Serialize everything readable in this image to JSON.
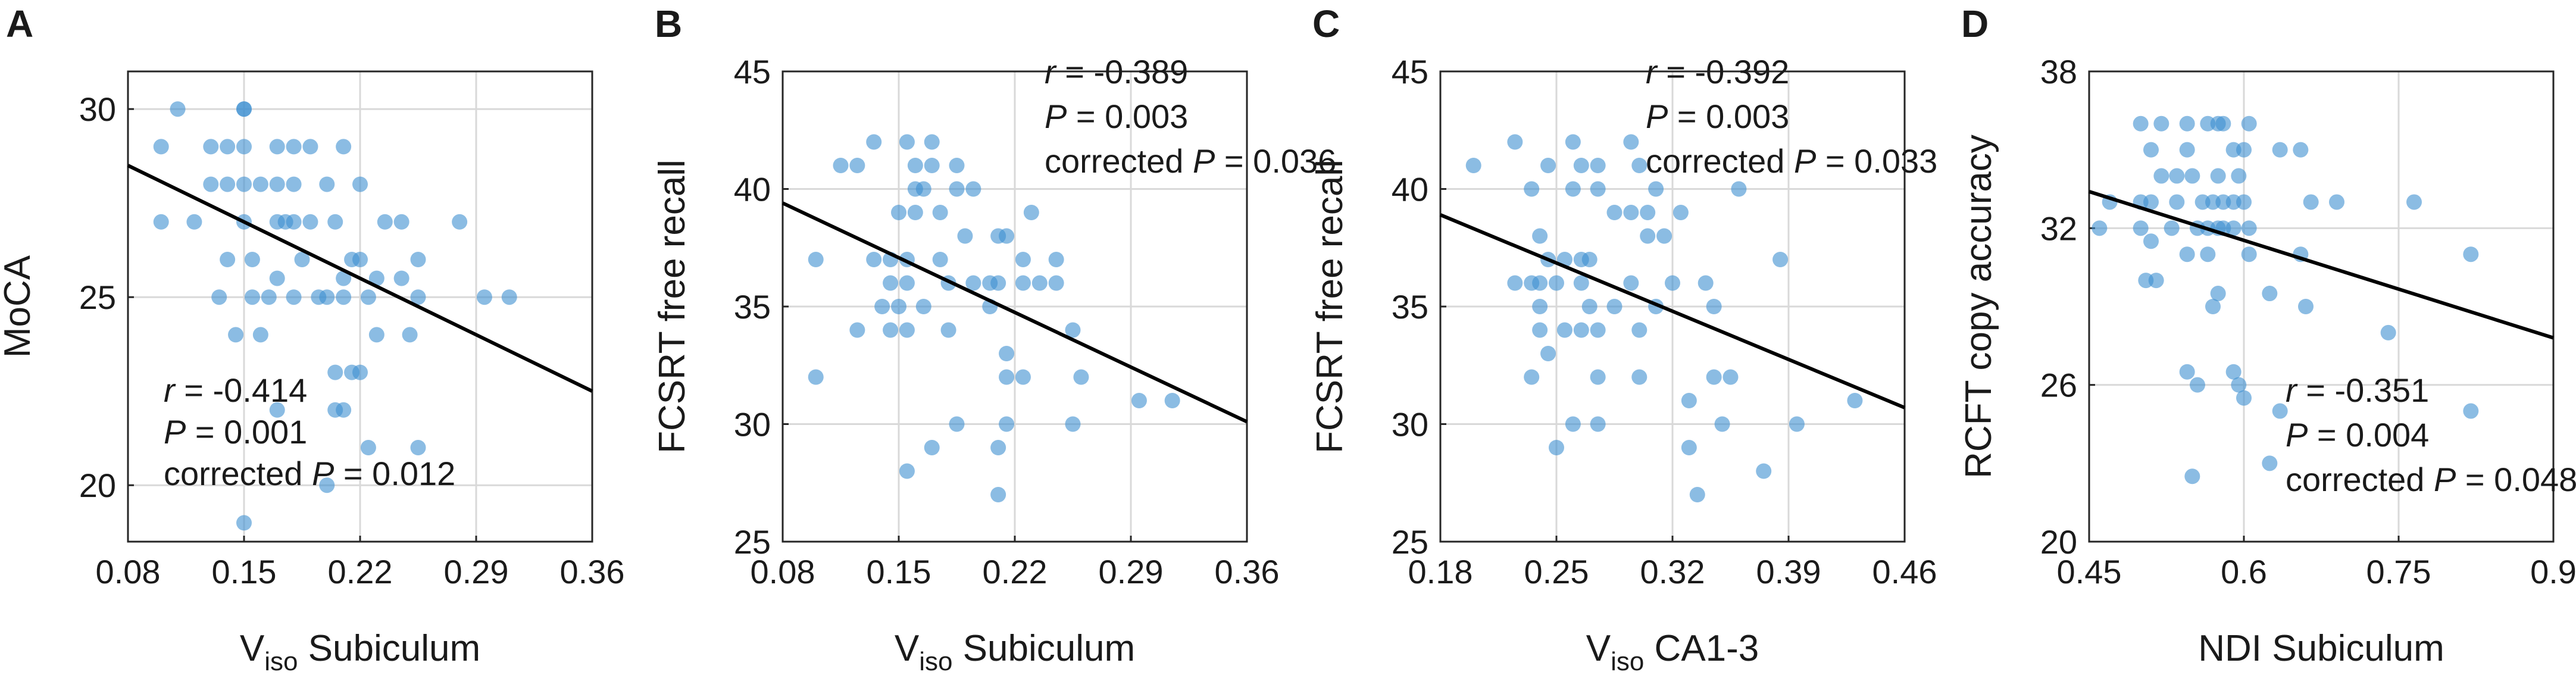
{
  "chart_data": [
    {
      "panel": "A",
      "type": "scatter",
      "xlabel": "V",
      "xlabel_sub": "iso",
      "xlabel_rest": " Subiculum",
      "ylabel": "MoCA",
      "xlim": [
        0.08,
        0.36
      ],
      "ylim": [
        18.5,
        31
      ],
      "xticks": [
        0.08,
        0.15,
        0.22,
        0.29,
        0.36
      ],
      "xtick_labels": [
        "0.08",
        "0.15",
        "0.22",
        "0.29",
        "0.36"
      ],
      "yticks": [
        20,
        25,
        30
      ],
      "ytick_labels": [
        "20",
        "25",
        "30"
      ],
      "fit": {
        "x": [
          0.08,
          0.36
        ],
        "y": [
          28.5,
          22.5
        ]
      },
      "stats": {
        "r_label": "r",
        "r_value": " = -0.414",
        "p_label": "P",
        "p_value": " = 0.001",
        "corr_label": "corrected ",
        "corr_p_label": "P",
        "corr_p_value": " = 0.012"
      },
      "points": [
        [
          0.11,
          30
        ],
        [
          0.15,
          30
        ],
        [
          0.15,
          30
        ],
        [
          0.1,
          29
        ],
        [
          0.13,
          29
        ],
        [
          0.14,
          29
        ],
        [
          0.15,
          29
        ],
        [
          0.17,
          29
        ],
        [
          0.18,
          29
        ],
        [
          0.19,
          29
        ],
        [
          0.21,
          29
        ],
        [
          0.13,
          28
        ],
        [
          0.14,
          28
        ],
        [
          0.15,
          28
        ],
        [
          0.16,
          28
        ],
        [
          0.17,
          28
        ],
        [
          0.18,
          28
        ],
        [
          0.2,
          28
        ],
        [
          0.22,
          28
        ],
        [
          0.1,
          27
        ],
        [
          0.12,
          27
        ],
        [
          0.15,
          27
        ],
        [
          0.17,
          27
        ],
        [
          0.175,
          27
        ],
        [
          0.18,
          27
        ],
        [
          0.19,
          27
        ],
        [
          0.205,
          27
        ],
        [
          0.235,
          27
        ],
        [
          0.245,
          27
        ],
        [
          0.28,
          27
        ],
        [
          0.14,
          26
        ],
        [
          0.155,
          26
        ],
        [
          0.185,
          26
        ],
        [
          0.215,
          26
        ],
        [
          0.22,
          26
        ],
        [
          0.255,
          26
        ],
        [
          0.17,
          25.5
        ],
        [
          0.21,
          25.5
        ],
        [
          0.23,
          25.5
        ],
        [
          0.245,
          25.5
        ],
        [
          0.135,
          25
        ],
        [
          0.155,
          25
        ],
        [
          0.165,
          25
        ],
        [
          0.18,
          25
        ],
        [
          0.195,
          25
        ],
        [
          0.2,
          25
        ],
        [
          0.21,
          25
        ],
        [
          0.225,
          25
        ],
        [
          0.255,
          25
        ],
        [
          0.295,
          25
        ],
        [
          0.31,
          25
        ],
        [
          0.145,
          24
        ],
        [
          0.16,
          24
        ],
        [
          0.23,
          24
        ],
        [
          0.25,
          24
        ],
        [
          0.205,
          23
        ],
        [
          0.215,
          23
        ],
        [
          0.22,
          23
        ],
        [
          0.17,
          22
        ],
        [
          0.205,
          22
        ],
        [
          0.21,
          22
        ],
        [
          0.225,
          21
        ],
        [
          0.255,
          21
        ],
        [
          0.2,
          20
        ],
        [
          0.15,
          19
        ]
      ]
    },
    {
      "panel": "B",
      "type": "scatter",
      "xlabel": "V",
      "xlabel_sub": "iso",
      "xlabel_rest": " Subiculum",
      "ylabel": "FCSRT free recall",
      "xlim": [
        0.08,
        0.36
      ],
      "ylim": [
        25,
        45
      ],
      "xticks": [
        0.08,
        0.15,
        0.22,
        0.29,
        0.36
      ],
      "xtick_labels": [
        "0.08",
        "0.15",
        "0.22",
        "0.29",
        "0.36"
      ],
      "yticks": [
        25,
        30,
        35,
        40,
        45
      ],
      "ytick_labels": [
        "25",
        "30",
        "35",
        "40",
        "45"
      ],
      "fit": {
        "x": [
          0.08,
          0.36
        ],
        "y": [
          39.4,
          30.1
        ]
      },
      "stats": {
        "r_label": "r",
        "r_value": " = -0.389",
        "p_label": "P",
        "p_value": " = 0.003",
        "corr_label": "corrected ",
        "corr_p_label": "P",
        "corr_p_value": " = 0.036"
      },
      "points": [
        [
          0.115,
          41
        ],
        [
          0.125,
          41
        ],
        [
          0.135,
          42
        ],
        [
          0.155,
          42
        ],
        [
          0.17,
          42
        ],
        [
          0.16,
          41
        ],
        [
          0.17,
          41
        ],
        [
          0.185,
          41
        ],
        [
          0.16,
          40
        ],
        [
          0.165,
          40
        ],
        [
          0.185,
          40
        ],
        [
          0.195,
          40
        ],
        [
          0.15,
          39
        ],
        [
          0.16,
          39
        ],
        [
          0.175,
          39
        ],
        [
          0.23,
          39
        ],
        [
          0.19,
          38
        ],
        [
          0.21,
          38
        ],
        [
          0.215,
          38
        ],
        [
          0.1,
          37
        ],
        [
          0.135,
          37
        ],
        [
          0.145,
          37
        ],
        [
          0.155,
          37
        ],
        [
          0.175,
          37
        ],
        [
          0.225,
          37
        ],
        [
          0.245,
          37
        ],
        [
          0.145,
          36
        ],
        [
          0.155,
          36
        ],
        [
          0.18,
          36
        ],
        [
          0.195,
          36
        ],
        [
          0.205,
          36
        ],
        [
          0.21,
          36
        ],
        [
          0.225,
          36
        ],
        [
          0.235,
          36
        ],
        [
          0.245,
          36
        ],
        [
          0.14,
          35
        ],
        [
          0.15,
          35
        ],
        [
          0.165,
          35
        ],
        [
          0.205,
          35
        ],
        [
          0.125,
          34
        ],
        [
          0.145,
          34
        ],
        [
          0.155,
          34
        ],
        [
          0.18,
          34
        ],
        [
          0.255,
          34
        ],
        [
          0.215,
          33
        ],
        [
          0.1,
          32
        ],
        [
          0.215,
          32
        ],
        [
          0.225,
          32
        ],
        [
          0.26,
          32
        ],
        [
          0.295,
          31
        ],
        [
          0.315,
          31
        ],
        [
          0.185,
          30
        ],
        [
          0.215,
          30
        ],
        [
          0.255,
          30
        ],
        [
          0.17,
          29
        ],
        [
          0.21,
          29
        ],
        [
          0.155,
          28
        ],
        [
          0.21,
          27
        ]
      ]
    },
    {
      "panel": "C",
      "type": "scatter",
      "xlabel": "V",
      "xlabel_sub": "iso",
      "xlabel_rest": " CA1-3",
      "ylabel": "FCSRT free recall",
      "xlim": [
        0.18,
        0.46
      ],
      "ylim": [
        25,
        45
      ],
      "xticks": [
        0.18,
        0.25,
        0.32,
        0.39,
        0.46
      ],
      "xtick_labels": [
        "0.18",
        "0.25",
        "0.32",
        "0.39",
        "0.46"
      ],
      "yticks": [
        25,
        30,
        35,
        40,
        45
      ],
      "ytick_labels": [
        "25",
        "30",
        "35",
        "40",
        "45"
      ],
      "fit": {
        "x": [
          0.18,
          0.46
        ],
        "y": [
          38.9,
          30.7
        ]
      },
      "stats": {
        "r_label": "r",
        "r_value": " = -0.392",
        "p_label": "P",
        "p_value": " = 0.003",
        "corr_label": "corrected ",
        "corr_p_label": "P",
        "corr_p_value": " = 0.033"
      },
      "points": [
        [
          0.2,
          41
        ],
        [
          0.225,
          42
        ],
        [
          0.26,
          42
        ],
        [
          0.295,
          42
        ],
        [
          0.245,
          41
        ],
        [
          0.265,
          41
        ],
        [
          0.275,
          41
        ],
        [
          0.3,
          41
        ],
        [
          0.235,
          40
        ],
        [
          0.26,
          40
        ],
        [
          0.275,
          40
        ],
        [
          0.31,
          40
        ],
        [
          0.36,
          40
        ],
        [
          0.285,
          39
        ],
        [
          0.295,
          39
        ],
        [
          0.305,
          39
        ],
        [
          0.325,
          39
        ],
        [
          0.305,
          38
        ],
        [
          0.315,
          38
        ],
        [
          0.24,
          38
        ],
        [
          0.245,
          37
        ],
        [
          0.255,
          37
        ],
        [
          0.265,
          37
        ],
        [
          0.27,
          37
        ],
        [
          0.385,
          37
        ],
        [
          0.225,
          36
        ],
        [
          0.235,
          36
        ],
        [
          0.24,
          36
        ],
        [
          0.25,
          36
        ],
        [
          0.265,
          36
        ],
        [
          0.295,
          36
        ],
        [
          0.32,
          36
        ],
        [
          0.34,
          36
        ],
        [
          0.24,
          35
        ],
        [
          0.285,
          35
        ],
        [
          0.31,
          35
        ],
        [
          0.345,
          35
        ],
        [
          0.24,
          34
        ],
        [
          0.255,
          34
        ],
        [
          0.265,
          34
        ],
        [
          0.275,
          34
        ],
        [
          0.3,
          34
        ],
        [
          0.27,
          35
        ],
        [
          0.245,
          33
        ],
        [
          0.235,
          32
        ],
        [
          0.275,
          32
        ],
        [
          0.3,
          32
        ],
        [
          0.345,
          32
        ],
        [
          0.355,
          32
        ],
        [
          0.33,
          31
        ],
        [
          0.43,
          31
        ],
        [
          0.26,
          30
        ],
        [
          0.275,
          30
        ],
        [
          0.35,
          30
        ],
        [
          0.395,
          30
        ],
        [
          0.25,
          29
        ],
        [
          0.33,
          29
        ],
        [
          0.375,
          28
        ],
        [
          0.335,
          27
        ]
      ]
    },
    {
      "panel": "D",
      "type": "scatter",
      "xlabel": "NDI Subiculum",
      "xlabel_sub": "",
      "xlabel_rest": "",
      "ylabel": "RCFT copy accuracy",
      "xlim": [
        0.45,
        0.9
      ],
      "ylim": [
        20,
        38
      ],
      "xticks": [
        0.45,
        0.6,
        0.75,
        0.9
      ],
      "xtick_labels": [
        "0.45",
        "0.6",
        "0.75",
        "0.9"
      ],
      "yticks": [
        20,
        26,
        32,
        38
      ],
      "ytick_labels": [
        "20",
        "26",
        "32",
        "38"
      ],
      "fit": {
        "x": [
          0.45,
          0.9
        ],
        "y": [
          33.4,
          27.8
        ]
      },
      "stats": {
        "r_label": "r",
        "r_value": " = -0.351",
        "p_label": "P",
        "p_value": " = 0.004",
        "corr_label": "corrected ",
        "corr_p_label": "P",
        "corr_p_value": " = 0.048"
      },
      "points": [
        [
          0.5,
          36
        ],
        [
          0.52,
          36
        ],
        [
          0.545,
          36
        ],
        [
          0.565,
          36
        ],
        [
          0.575,
          36
        ],
        [
          0.58,
          36
        ],
        [
          0.605,
          36
        ],
        [
          0.51,
          35
        ],
        [
          0.545,
          35
        ],
        [
          0.59,
          35
        ],
        [
          0.6,
          35
        ],
        [
          0.635,
          35
        ],
        [
          0.655,
          35
        ],
        [
          0.52,
          34
        ],
        [
          0.535,
          34
        ],
        [
          0.55,
          34
        ],
        [
          0.575,
          34
        ],
        [
          0.595,
          34
        ],
        [
          0.47,
          33
        ],
        [
          0.5,
          33
        ],
        [
          0.51,
          33
        ],
        [
          0.535,
          33
        ],
        [
          0.56,
          33
        ],
        [
          0.57,
          33
        ],
        [
          0.58,
          33
        ],
        [
          0.59,
          33
        ],
        [
          0.6,
          33
        ],
        [
          0.665,
          33
        ],
        [
          0.69,
          33
        ],
        [
          0.765,
          33
        ],
        [
          0.46,
          32
        ],
        [
          0.5,
          32
        ],
        [
          0.53,
          32
        ],
        [
          0.555,
          32
        ],
        [
          0.565,
          32
        ],
        [
          0.575,
          32
        ],
        [
          0.58,
          32
        ],
        [
          0.59,
          32
        ],
        [
          0.605,
          32
        ],
        [
          0.51,
          31.5
        ],
        [
          0.545,
          31
        ],
        [
          0.565,
          31
        ],
        [
          0.605,
          31
        ],
        [
          0.655,
          31
        ],
        [
          0.82,
          31
        ],
        [
          0.505,
          30
        ],
        [
          0.515,
          30
        ],
        [
          0.575,
          29.5
        ],
        [
          0.625,
          29.5
        ],
        [
          0.57,
          29
        ],
        [
          0.66,
          29
        ],
        [
          0.74,
          28
        ],
        [
          0.545,
          26.5
        ],
        [
          0.555,
          26
        ],
        [
          0.59,
          26.5
        ],
        [
          0.595,
          26
        ],
        [
          0.6,
          25.5
        ],
        [
          0.635,
          25
        ],
        [
          0.82,
          25
        ],
        [
          0.625,
          23
        ],
        [
          0.55,
          22.5
        ]
      ]
    }
  ]
}
